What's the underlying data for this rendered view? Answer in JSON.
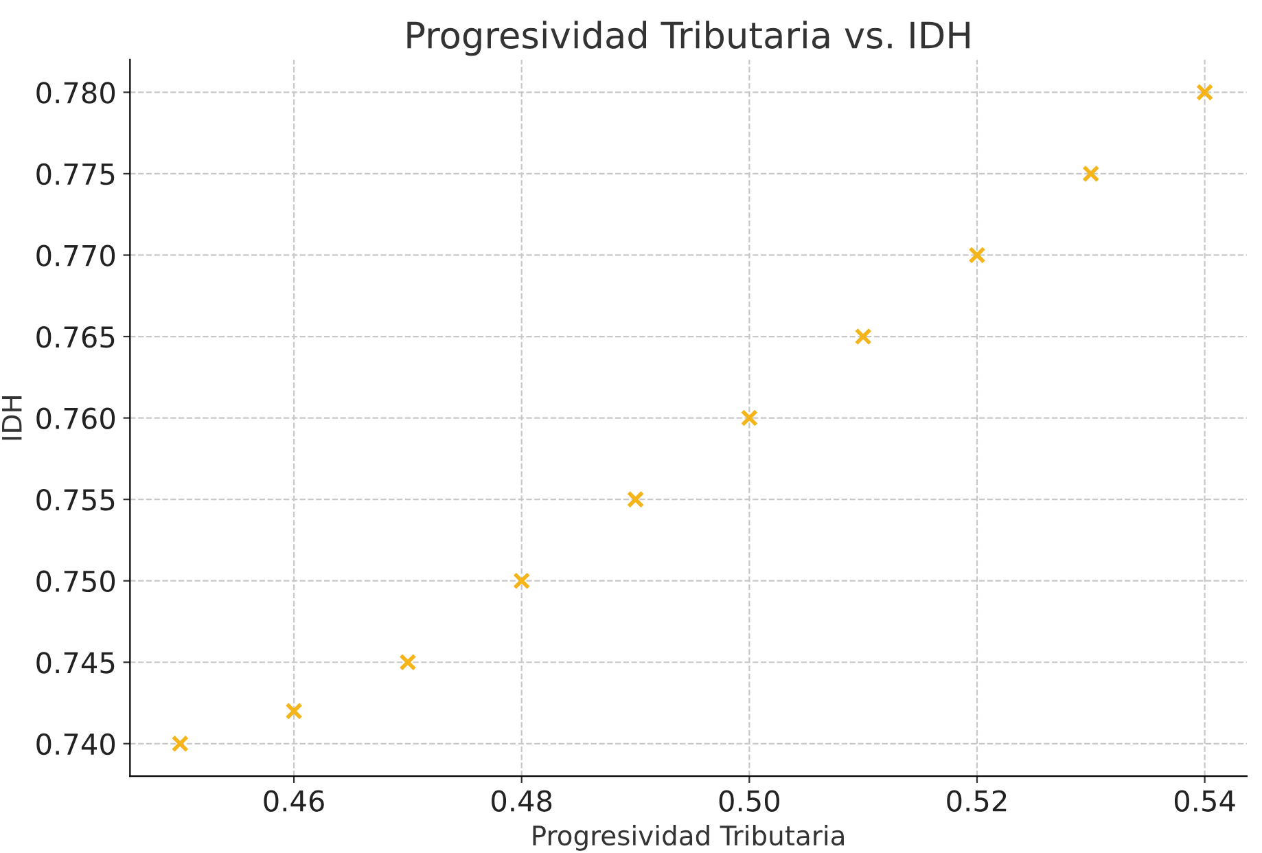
{
  "chart_data": {
    "type": "scatter",
    "title": "Progresividad Tributaria vs. IDH",
    "xlabel": "Progresividad Tributaria",
    "ylabel": "IDH",
    "x": [
      0.45,
      0.46,
      0.47,
      0.48,
      0.49,
      0.5,
      0.51,
      0.52,
      0.53,
      0.54
    ],
    "series": [
      {
        "color": "#f4b41a",
        "values": [
          0.74,
          0.742,
          0.745,
          0.75,
          0.755,
          0.76,
          0.765,
          0.77,
          0.775,
          0.78
        ]
      }
    ],
    "xlim": [
      0.4456,
      0.5437
    ],
    "ylim": [
      0.738,
      0.782
    ],
    "xticks": [
      {
        "value": 0.46,
        "label": "0.46"
      },
      {
        "value": 0.48,
        "label": "0.48"
      },
      {
        "value": 0.5,
        "label": "0.50"
      },
      {
        "value": 0.52,
        "label": "0.52"
      },
      {
        "value": 0.54,
        "label": "0.54"
      }
    ],
    "yticks": [
      {
        "value": 0.74,
        "label": "0.740"
      },
      {
        "value": 0.745,
        "label": "0.745"
      },
      {
        "value": 0.75,
        "label": "0.750"
      },
      {
        "value": 0.755,
        "label": "0.755"
      },
      {
        "value": 0.76,
        "label": "0.760"
      },
      {
        "value": 0.765,
        "label": "0.765"
      },
      {
        "value": 0.77,
        "label": "0.770"
      },
      {
        "value": 0.775,
        "label": "0.775"
      },
      {
        "value": 0.78,
        "label": "0.780"
      }
    ],
    "grid": true,
    "marker": "cross",
    "line_style": "dashed"
  }
}
